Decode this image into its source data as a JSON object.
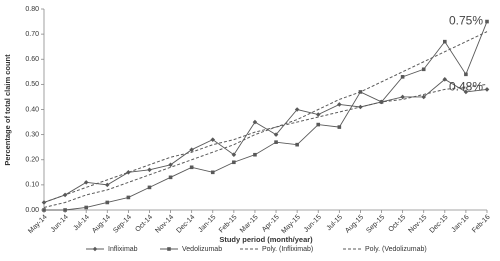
{
  "chart_data": {
    "type": "line",
    "y_label": "Percentage of total claim count",
    "x_label": "Study period (month/year)",
    "categories": [
      "May-14",
      "Jun-14",
      "Jul-14",
      "Aug-14",
      "Sep-14",
      "Oct-14",
      "Nov-14",
      "Dec-14",
      "Jan-15",
      "Feb-15",
      "Mar-15",
      "Apr-15",
      "May-15",
      "Jun-15",
      "Jul-15",
      "Aug-15",
      "Sep-15",
      "Oct-15",
      "Nov-15",
      "Dec-15",
      "Jan-16",
      "Feb-16"
    ],
    "series": [
      {
        "name": "Infliximab",
        "color": "#595959",
        "marker": "diamond",
        "dashed": false,
        "values": [
          0.03,
          0.06,
          0.11,
          0.1,
          0.15,
          0.16,
          0.18,
          0.24,
          0.28,
          0.22,
          0.35,
          0.3,
          0.4,
          0.38,
          0.42,
          0.41,
          0.43,
          0.45,
          0.45,
          0.52,
          0.47,
          0.48
        ]
      },
      {
        "name": "Vedolizumab",
        "color": "#595959",
        "marker": "square",
        "dashed": false,
        "values": [
          0.0,
          0.0,
          0.01,
          0.03,
          0.05,
          0.09,
          0.13,
          0.17,
          0.15,
          0.19,
          0.22,
          0.27,
          0.26,
          0.34,
          0.33,
          0.47,
          0.43,
          0.53,
          0.56,
          0.67,
          0.54,
          0.75
        ]
      },
      {
        "name": "Poly. (Infliximab)",
        "color": "#595959",
        "marker": null,
        "dashed": true,
        "values": [
          0.03,
          0.06,
          0.09,
          0.12,
          0.15,
          0.18,
          0.21,
          0.23,
          0.26,
          0.28,
          0.31,
          0.33,
          0.35,
          0.37,
          0.39,
          0.41,
          0.43,
          0.44,
          0.46,
          0.48,
          0.49,
          0.5
        ]
      },
      {
        "name": "Poly. (Vedolizumab)",
        "color": "#595959",
        "marker": null,
        "dashed": true,
        "values": [
          0.01,
          0.03,
          0.06,
          0.08,
          0.11,
          0.14,
          0.17,
          0.2,
          0.23,
          0.26,
          0.3,
          0.33,
          0.36,
          0.4,
          0.44,
          0.47,
          0.51,
          0.55,
          0.59,
          0.63,
          0.67,
          0.71
        ]
      }
    ],
    "annotations": [
      {
        "text": "0.75%",
        "category": "Feb-16",
        "value": 0.75
      },
      {
        "text": "0.48%",
        "category": "Feb-16",
        "value": 0.48
      }
    ],
    "ylim": [
      0,
      0.8
    ],
    "yticks": [
      {
        "value": 0,
        "label": "0.00"
      },
      {
        "value": 0.1,
        "label": "0.10"
      },
      {
        "value": 0.2,
        "label": "0.20"
      },
      {
        "value": 0.3,
        "label": "0.30"
      },
      {
        "value": 0.4,
        "label": "0.40"
      },
      {
        "value": 0.5,
        "label": "0.50"
      },
      {
        "value": 0.6,
        "label": "0.60"
      },
      {
        "value": 0.7,
        "label": "0.70"
      },
      {
        "value": 0.8,
        "label": "0.80"
      }
    ],
    "grid": false,
    "legend": "bottom"
  }
}
